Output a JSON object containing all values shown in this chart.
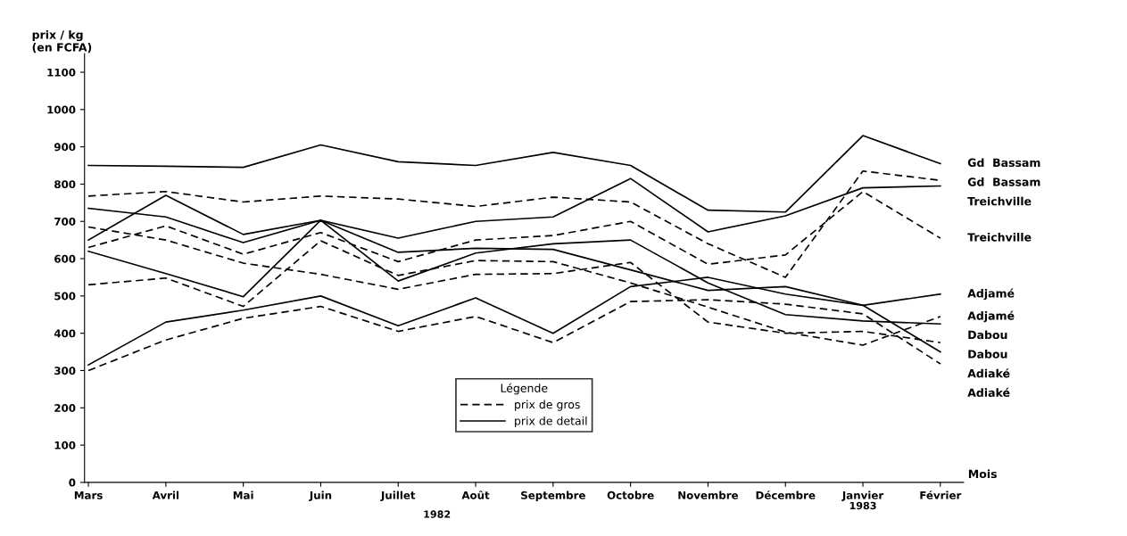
{
  "chart_data": {
    "type": "line",
    "ylabel": "prix / kg\n(en FCFA)",
    "xlabel": "Mois",
    "legend_title": "Légende",
    "categories": [
      "Mars",
      "Avril",
      "Mai",
      "Juin",
      "Juillet",
      "Août",
      "Septembre",
      "Octobre",
      "Novembre",
      "Décembre",
      "Janvier",
      "Février"
    ],
    "series": [
      {
        "name": "Gd  Bassam",
        "color": "#000000",
        "line_style": "dashed",
        "values": [
          768,
          780,
          752,
          768,
          760,
          740,
          765,
          752,
          640,
          550,
          835,
          810
        ]
      },
      {
        "name": "Gd  Bassam",
        "color": "#000000",
        "line_style": "solid",
        "values": [
          850,
          848,
          845,
          905,
          860,
          850,
          885,
          850,
          730,
          725,
          930,
          855
        ]
      },
      {
        "name": "Treichville",
        "color": "#000000",
        "line_style": "solid",
        "values": [
          650,
          770,
          665,
          703,
          655,
          700,
          712,
          815,
          672,
          715,
          790,
          795
        ]
      },
      {
        "name": "Treichville",
        "color": "#000000",
        "line_style": "dashed",
        "values": [
          630,
          688,
          612,
          670,
          592,
          650,
          662,
          700,
          585,
          610,
          780,
          655
        ]
      },
      {
        "name": "Adjamé",
        "color": "#000000",
        "line_style": "solid",
        "values": [
          735,
          712,
          643,
          703,
          617,
          628,
          625,
          570,
          515,
          525,
          475,
          505
        ]
      },
      {
        "name": "Adjamé",
        "color": "#000000",
        "line_style": "dashed",
        "values": [
          530,
          548,
          472,
          648,
          555,
          595,
          592,
          535,
          470,
          403,
          368,
          445
        ]
      },
      {
        "name": "Dabou",
        "color": "#000000",
        "line_style": "solid",
        "values": [
          620,
          560,
          498,
          703,
          540,
          615,
          640,
          650,
          535,
          450,
          433,
          425
        ]
      },
      {
        "name": "Dabou",
        "color": "#000000",
        "line_style": "dashed",
        "values": [
          685,
          650,
          588,
          558,
          518,
          558,
          560,
          590,
          430,
          400,
          405,
          375
        ]
      },
      {
        "name": "Adiaké",
        "color": "#000000",
        "line_style": "solid",
        "values": [
          315,
          430,
          462,
          500,
          420,
          495,
          400,
          525,
          550,
          505,
          475,
          350
        ]
      },
      {
        "name": "Adiaké",
        "color": "#000000",
        "line_style": "dashed",
        "values": [
          300,
          382,
          440,
          472,
          405,
          445,
          375,
          485,
          490,
          478,
          452,
          318
        ]
      }
    ],
    "ylim": [
      0,
      1150
    ],
    "yticks": [
      0,
      100,
      200,
      300,
      400,
      500,
      600,
      700,
      800,
      900,
      1000,
      1100
    ],
    "grid": false,
    "legend": "bottom",
    "marker": "none",
    "annotations": [
      "prix de gros",
      "prix de detail",
      "1982",
      "1983"
    ]
  }
}
